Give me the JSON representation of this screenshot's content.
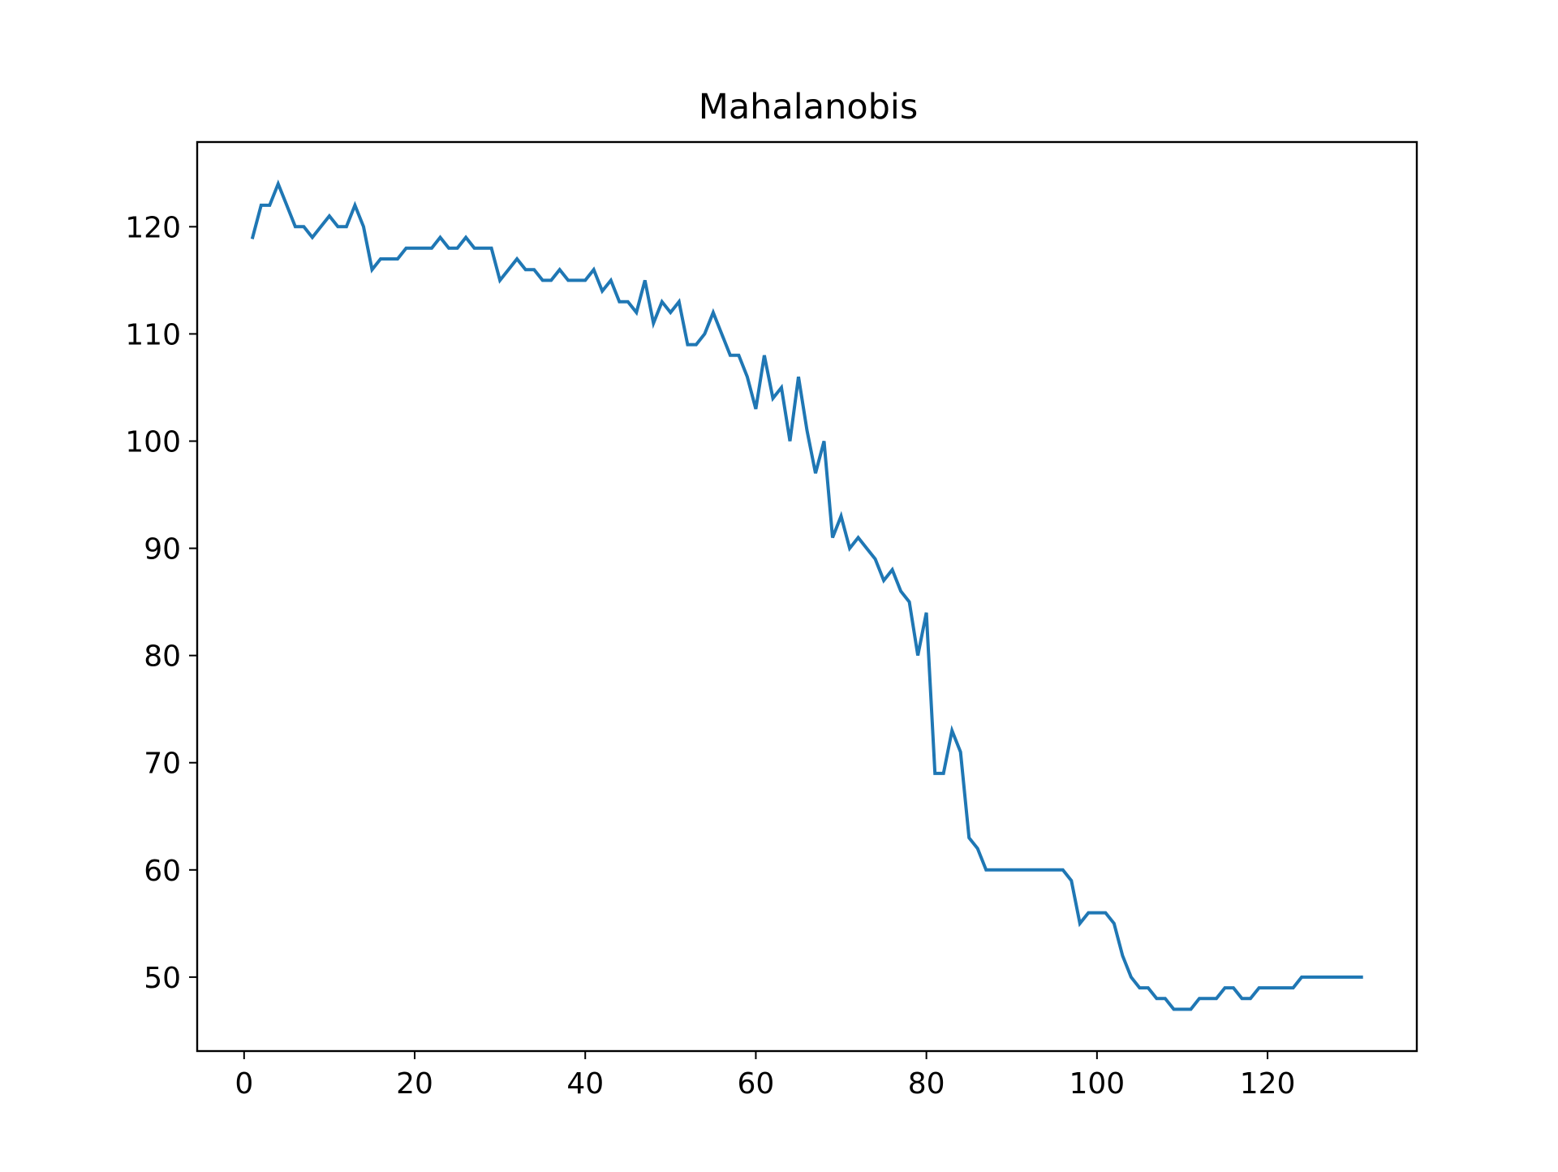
{
  "chart_data": {
    "type": "line",
    "title": "Mahalanobis",
    "xlabel": "",
    "ylabel": "",
    "xlim": [
      -5.5,
      137.5
    ],
    "ylim": [
      43.1,
      127.9
    ],
    "xticks": [
      0,
      20,
      40,
      60,
      80,
      100,
      120
    ],
    "yticks": [
      50,
      60,
      70,
      80,
      90,
      100,
      110,
      120
    ],
    "grid": false,
    "line_color": "#1f77b4",
    "series": [
      {
        "x": [
          1,
          2,
          3,
          4,
          5,
          6,
          7,
          8,
          9,
          10,
          11,
          12,
          13,
          14,
          15,
          16,
          17,
          18,
          19,
          20,
          21,
          22,
          23,
          24,
          25,
          26,
          27,
          28,
          29,
          30,
          31,
          32,
          33,
          34,
          35,
          36,
          37,
          38,
          39,
          40,
          41,
          42,
          43,
          44,
          45,
          46,
          47,
          48,
          49,
          50,
          51,
          52,
          53,
          54,
          55,
          56,
          57,
          58,
          59,
          60,
          61,
          62,
          63,
          64,
          65,
          66,
          67,
          68,
          69,
          70,
          71,
          72,
          73,
          74,
          75,
          76,
          77,
          78,
          79,
          80,
          81,
          82,
          83,
          84,
          85,
          86,
          87,
          88,
          89,
          90,
          91,
          92,
          93,
          94,
          95,
          96,
          97,
          98,
          99,
          100,
          101,
          102,
          103,
          104,
          105,
          106,
          107,
          108,
          109,
          110,
          111,
          112,
          113,
          114,
          115,
          116,
          117,
          118,
          119,
          120,
          121,
          122,
          123,
          124,
          125,
          126,
          127,
          128,
          129,
          130,
          131
        ],
        "values": [
          119,
          122,
          122,
          124,
          122,
          120,
          120,
          119,
          120,
          121,
          120,
          120,
          122,
          120,
          116,
          117,
          117,
          117,
          118,
          118,
          118,
          118,
          119,
          118,
          118,
          119,
          118,
          118,
          118,
          115,
          116,
          117,
          116,
          116,
          115,
          115,
          116,
          115,
          115,
          115,
          116,
          114,
          115,
          113,
          113,
          112,
          115,
          111,
          113,
          112,
          113,
          109,
          109,
          110,
          112,
          110,
          108,
          108,
          106,
          103,
          108,
          104,
          105,
          100,
          106,
          101,
          97,
          100,
          91,
          93,
          90,
          91,
          90,
          89,
          87,
          88,
          86,
          85,
          80,
          84,
          69,
          69,
          73,
          71,
          63,
          62,
          60,
          60,
          60,
          60,
          60,
          60,
          60,
          60,
          60,
          60,
          59,
          55,
          56,
          56,
          56,
          55,
          52,
          50,
          49,
          49,
          48,
          48,
          47,
          47,
          47,
          48,
          48,
          48,
          49,
          49,
          48,
          48,
          49,
          49,
          49,
          49,
          49,
          50,
          50,
          50,
          50,
          50,
          50,
          50,
          50
        ]
      }
    ]
  }
}
